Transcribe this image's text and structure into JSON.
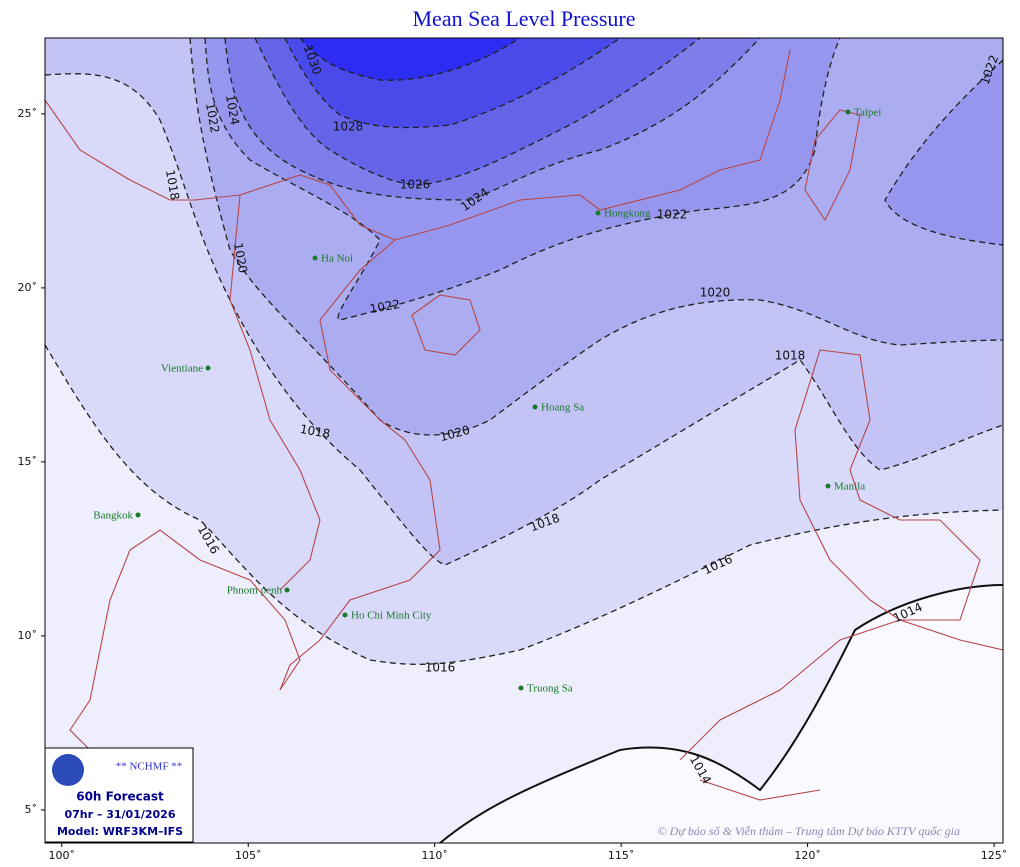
{
  "map": {
    "title": "Mean Sea Level Pressure",
    "lon_range": [
      99.55,
      125.24
    ],
    "lat_range": [
      4.05,
      27.18
    ],
    "lon_ticks": [
      {
        "value": 100,
        "label": "100˚"
      },
      {
        "value": 105,
        "label": "105˚"
      },
      {
        "value": 110,
        "label": "110˚"
      },
      {
        "value": 115,
        "label": "115˚"
      },
      {
        "value": 120,
        "label": "120˚"
      },
      {
        "value": 125,
        "label": "125˚"
      }
    ],
    "lat_ticks": [
      {
        "value": 5,
        "label": "5˚"
      },
      {
        "value": 10,
        "label": "10˚"
      },
      {
        "value": 15,
        "label": "15˚"
      },
      {
        "value": 20,
        "label": "20˚"
      },
      {
        "value": 25,
        "label": "25˚"
      }
    ],
    "contour_labels": [
      1030,
      1028,
      1026,
      1024,
      1024,
      1022,
      1022,
      1022,
      1022,
      1020,
      1020,
      1020,
      1018,
      1018,
      1018,
      1018,
      1016,
      1016,
      1016,
      1014,
      1014
    ],
    "cities": [
      "Taipei",
      "Hongkong",
      "Ha Noi",
      "Vientiane",
      "Hoang Sa",
      "Manila",
      "Bangkok",
      "Phnom penh",
      "Ho Chi Minh City",
      "Truong Sa"
    ],
    "legend": {
      "agency": "** NCHMF **",
      "forecast": "60h Forecast",
      "valid": "07hr – 31/01/2026",
      "model": "Model: WRF3KM–IFS"
    },
    "credit": "© Dự báo số & Viễn thám – Trung tâm Dự báo KTTV quốc gia"
  }
}
